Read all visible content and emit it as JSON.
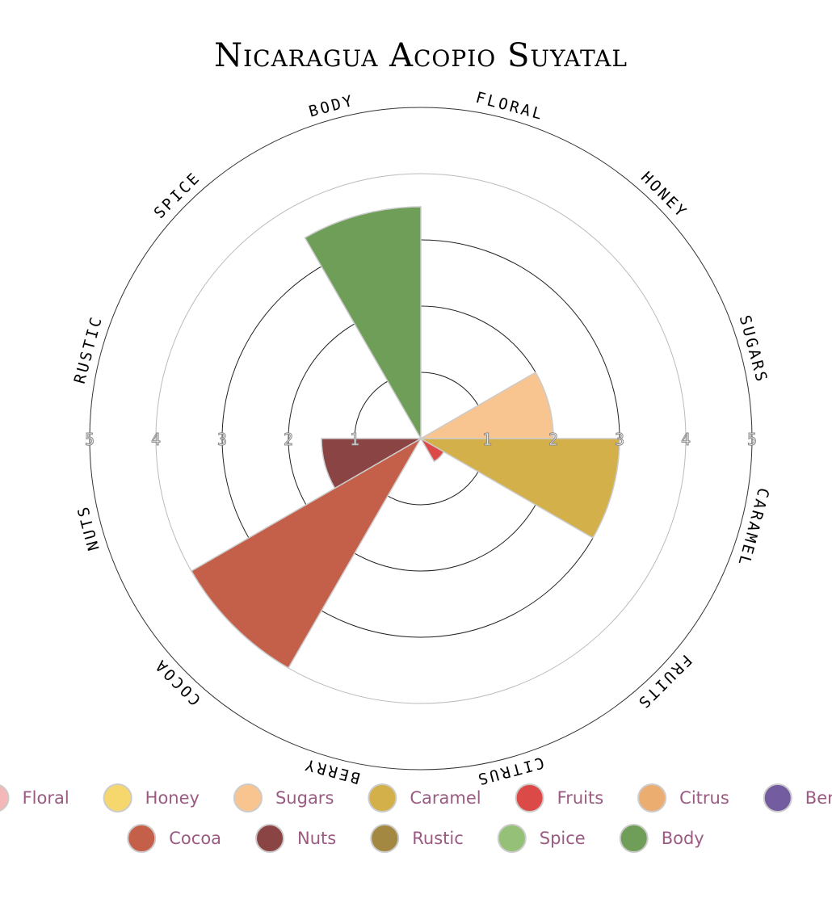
{
  "chart_data": {
    "type": "polar-area",
    "title": "Nicaragua Acopio Suyatal",
    "categories": [
      "Floral",
      "Honey",
      "Sugars",
      "Caramel",
      "Fruits",
      "Citrus",
      "Berry",
      "Cocoa",
      "Nuts",
      "Rustic",
      "Spice",
      "Body"
    ],
    "values": [
      0,
      0,
      2,
      3,
      0.4,
      0,
      0,
      4,
      1.5,
      0,
      0,
      3.5
    ],
    "colors": [
      "#f4b8b8",
      "#f5d76e",
      "#f8c48f",
      "#d3b04a",
      "#dc4a48",
      "#ecae70",
      "#735ca0",
      "#c45f4a",
      "#8b4444",
      "#a38842",
      "#95c078",
      "#6e9e57"
    ],
    "rlim": [
      0,
      5
    ],
    "rticks": [
      1,
      2,
      3,
      4,
      5
    ],
    "grid": true,
    "legend": "bottom"
  }
}
